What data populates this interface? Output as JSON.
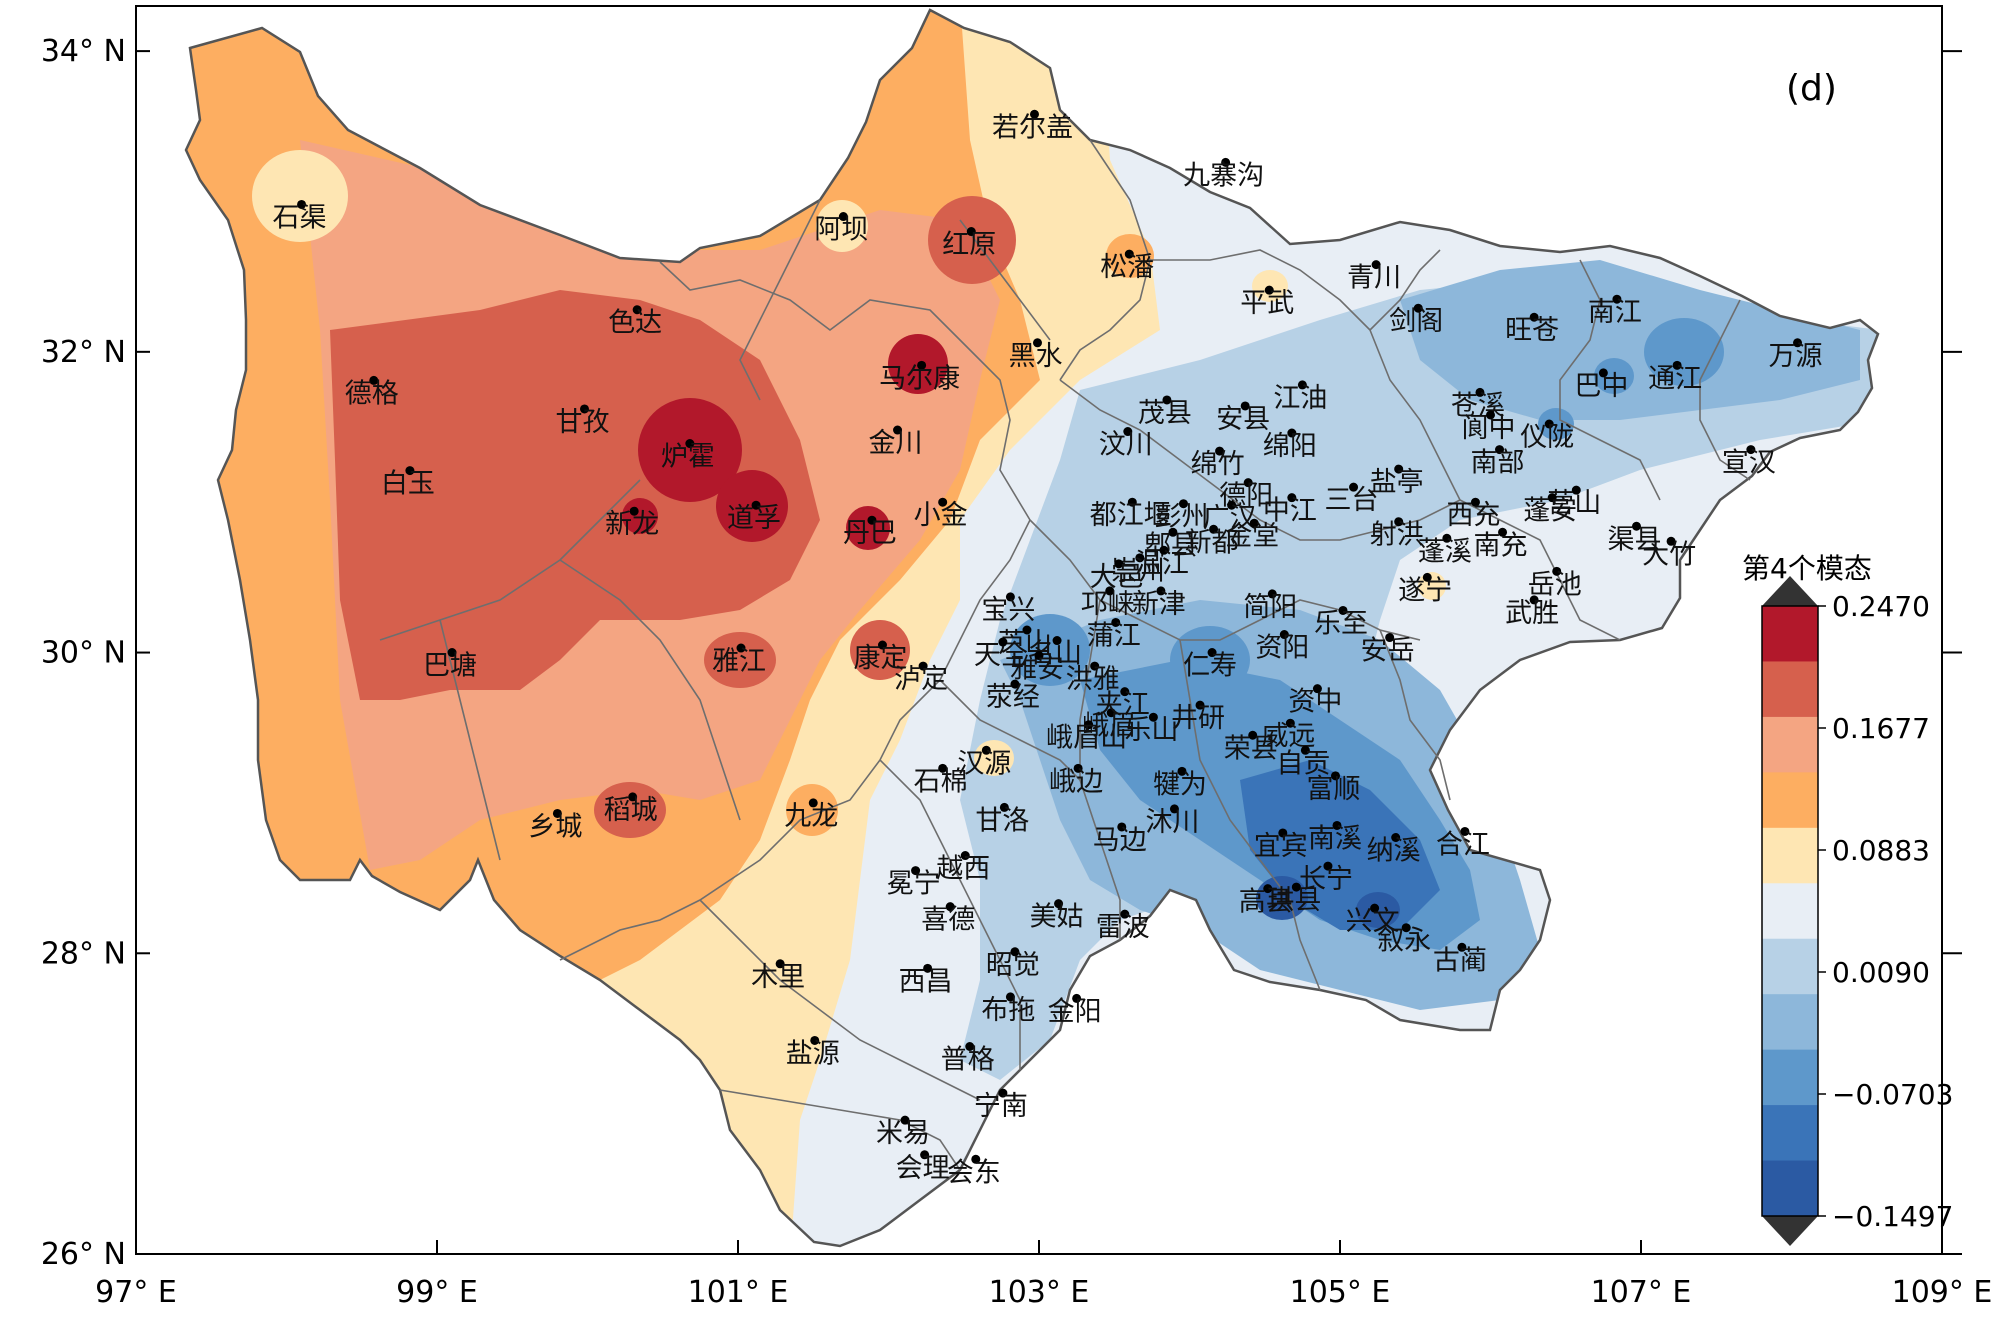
{
  "figure": {
    "panel_label": "(d)",
    "colorbar_title": "第4个模态"
  },
  "axes": {
    "x_ticks": [
      "97° E",
      "99° E",
      "101° E",
      "103° E",
      "105° E",
      "107° E",
      "109° E"
    ],
    "y_ticks": [
      "34° N",
      "32° N",
      "30° N",
      "28° N",
      "26° N"
    ],
    "lon_range": [
      97,
      109
    ],
    "lat_range": [
      26,
      34.3
    ]
  },
  "colorbar": {
    "tick_labels": [
      "0.2470",
      "0.1677",
      "0.0883",
      "0.0090",
      "−0.0703",
      "−0.1497"
    ],
    "colors": [
      "#b2182b",
      "#d6604d",
      "#f4a582",
      "#fdae61",
      "#fee6b3",
      "#e8eef5",
      "#b7d1e6",
      "#8db7da",
      "#5e98cb",
      "#3a74b8",
      "#2b5aa3"
    ]
  },
  "stations": [
    {
      "name": "石渠",
      "lon": 98.1,
      "lat": 32.98
    },
    {
      "name": "阿坝",
      "lon": 101.7,
      "lat": 32.9
    },
    {
      "name": "红原",
      "lon": 102.55,
      "lat": 32.8
    },
    {
      "name": "若尔盖",
      "lon": 102.97,
      "lat": 33.58
    },
    {
      "name": "九寨沟",
      "lon": 104.24,
      "lat": 33.26
    },
    {
      "name": "松潘",
      "lon": 103.6,
      "lat": 32.65
    },
    {
      "name": "色达",
      "lon": 100.33,
      "lat": 32.28
    },
    {
      "name": "德格",
      "lon": 98.58,
      "lat": 31.81
    },
    {
      "name": "甘孜",
      "lon": 99.98,
      "lat": 31.62
    },
    {
      "name": "炉霍",
      "lon": 100.68,
      "lat": 31.39
    },
    {
      "name": "白玉",
      "lon": 98.82,
      "lat": 31.21
    },
    {
      "name": "新龙",
      "lon": 100.31,
      "lat": 30.94
    },
    {
      "name": "道孚",
      "lon": 101.12,
      "lat": 30.98
    },
    {
      "name": "马尔康",
      "lon": 102.22,
      "lat": 31.91
    },
    {
      "name": "金川",
      "lon": 102.06,
      "lat": 31.48
    },
    {
      "name": "小金",
      "lon": 102.36,
      "lat": 31.0
    },
    {
      "name": "丹巴",
      "lon": 101.89,
      "lat": 30.88
    },
    {
      "name": "黑水",
      "lon": 102.99,
      "lat": 32.06
    },
    {
      "name": "平武",
      "lon": 104.53,
      "lat": 32.41
    },
    {
      "name": "青川",
      "lon": 105.24,
      "lat": 32.58
    },
    {
      "name": "剑阁",
      "lon": 105.52,
      "lat": 32.29
    },
    {
      "name": "旺苍",
      "lon": 106.29,
      "lat": 32.23
    },
    {
      "name": "南江",
      "lon": 106.84,
      "lat": 32.35
    },
    {
      "name": "巴中",
      "lon": 106.75,
      "lat": 31.86
    },
    {
      "name": "通江",
      "lon": 107.24,
      "lat": 31.91
    },
    {
      "name": "万源",
      "lon": 108.04,
      "lat": 32.06
    },
    {
      "name": "茂县",
      "lon": 103.85,
      "lat": 31.68
    },
    {
      "name": "安县",
      "lon": 104.37,
      "lat": 31.64
    },
    {
      "name": "江油",
      "lon": 104.75,
      "lat": 31.78
    },
    {
      "name": "苍溪",
      "lon": 105.93,
      "lat": 31.73
    },
    {
      "name": "阆中",
      "lon": 106.0,
      "lat": 31.58
    },
    {
      "name": "仪陇",
      "lon": 106.39,
      "lat": 31.52
    },
    {
      "name": "汶川",
      "lon": 103.59,
      "lat": 31.47
    },
    {
      "name": "绵竹",
      "lon": 104.2,
      "lat": 31.34
    },
    {
      "name": "绵阳",
      "lon": 104.68,
      "lat": 31.46
    },
    {
      "name": "德阳",
      "lon": 104.39,
      "lat": 31.13
    },
    {
      "name": "盐亭",
      "lon": 105.39,
      "lat": 31.22
    },
    {
      "name": "宣汉",
      "lon": 107.73,
      "lat": 31.35
    },
    {
      "name": "都江堰",
      "lon": 103.62,
      "lat": 31.0
    },
    {
      "name": "彭州",
      "lon": 103.96,
      "lat": 30.99
    },
    {
      "name": "广汉",
      "lon": 104.28,
      "lat": 30.98
    },
    {
      "name": "中江",
      "lon": 104.68,
      "lat": 31.03
    },
    {
      "name": "三台",
      "lon": 105.09,
      "lat": 31.1
    },
    {
      "name": "南部",
      "lon": 106.06,
      "lat": 31.35
    },
    {
      "name": "营山",
      "lon": 106.57,
      "lat": 31.08
    },
    {
      "name": "西充",
      "lon": 105.9,
      "lat": 31.0
    },
    {
      "name": "南充",
      "lon": 106.08,
      "lat": 30.8
    },
    {
      "name": "渠县",
      "lon": 106.97,
      "lat": 30.84
    },
    {
      "name": "崇州",
      "lon": 103.67,
      "lat": 30.63
    },
    {
      "name": "郫县",
      "lon": 103.89,
      "lat": 30.8
    },
    {
      "name": "新都",
      "lon": 104.16,
      "lat": 30.82
    },
    {
      "name": "金堂",
      "lon": 104.43,
      "lat": 30.86
    },
    {
      "name": "射洪",
      "lon": 105.39,
      "lat": 30.87
    },
    {
      "name": "蓬溪",
      "lon": 105.71,
      "lat": 30.76
    },
    {
      "name": "蓬安",
      "lon": 106.41,
      "lat": 31.03
    },
    {
      "name": "大竹",
      "lon": 107.2,
      "lat": 30.74
    },
    {
      "name": "宝兴",
      "lon": 102.81,
      "lat": 30.37
    },
    {
      "name": "芦山",
      "lon": 102.92,
      "lat": 30.15
    },
    {
      "name": "大邑",
      "lon": 103.53,
      "lat": 30.59
    },
    {
      "name": "温江",
      "lon": 103.83,
      "lat": 30.68
    },
    {
      "name": "乐至",
      "lon": 105.02,
      "lat": 30.28
    },
    {
      "name": "遂宁",
      "lon": 105.58,
      "lat": 30.5
    },
    {
      "name": "武胜",
      "lon": 106.29,
      "lat": 30.35
    },
    {
      "name": "岳池",
      "lon": 106.44,
      "lat": 30.54
    },
    {
      "name": "名山",
      "lon": 103.12,
      "lat": 30.08
    },
    {
      "name": "邛崃",
      "lon": 103.47,
      "lat": 30.41
    },
    {
      "name": "新津",
      "lon": 103.81,
      "lat": 30.41
    },
    {
      "name": "简阳",
      "lon": 104.55,
      "lat": 30.39
    },
    {
      "name": "资阳",
      "lon": 104.63,
      "lat": 30.12
    },
    {
      "name": "康定",
      "lon": 101.96,
      "lat": 30.05
    },
    {
      "name": "雅江",
      "lon": 101.02,
      "lat": 30.03
    },
    {
      "name": "巴塘",
      "lon": 99.1,
      "lat": 30.0
    },
    {
      "name": "天全",
      "lon": 102.76,
      "lat": 30.07
    },
    {
      "name": "雅安",
      "lon": 103.0,
      "lat": 29.98
    },
    {
      "name": "洪雅",
      "lon": 103.37,
      "lat": 29.91
    },
    {
      "name": "仁寿",
      "lon": 104.15,
      "lat": 30.0
    },
    {
      "name": "资中",
      "lon": 104.85,
      "lat": 29.76
    },
    {
      "name": "安岳",
      "lon": 105.33,
      "lat": 30.1
    },
    {
      "name": "泸定",
      "lon": 102.23,
      "lat": 29.91
    },
    {
      "name": "蒲江",
      "lon": 103.51,
      "lat": 30.2
    },
    {
      "name": "荥经",
      "lon": 102.84,
      "lat": 29.79
    },
    {
      "name": "峨眉",
      "lon": 103.48,
      "lat": 29.6
    },
    {
      "name": "夹江",
      "lon": 103.57,
      "lat": 29.74
    },
    {
      "name": "井研",
      "lon": 104.07,
      "lat": 29.65
    },
    {
      "name": "威远",
      "lon": 104.67,
      "lat": 29.53
    },
    {
      "name": "荣县",
      "lon": 104.42,
      "lat": 29.45
    },
    {
      "name": "汉源",
      "lon": 102.65,
      "lat": 29.35
    },
    {
      "name": "峨眉山",
      "lon": 103.33,
      "lat": 29.52
    },
    {
      "name": "自贡",
      "lon": 104.77,
      "lat": 29.35
    },
    {
      "name": "石棉",
      "lon": 102.36,
      "lat": 29.23
    },
    {
      "name": "犍为",
      "lon": 103.95,
      "lat": 29.21
    },
    {
      "name": "富顺",
      "lon": 104.97,
      "lat": 29.18
    },
    {
      "name": "九龙",
      "lon": 101.5,
      "lat": 29.0
    },
    {
      "name": "稻城",
      "lon": 100.3,
      "lat": 29.04
    },
    {
      "name": "乡城",
      "lon": 99.8,
      "lat": 28.93
    },
    {
      "name": "甘洛",
      "lon": 102.77,
      "lat": 28.97
    },
    {
      "name": "宜宾",
      "lon": 104.62,
      "lat": 28.8
    },
    {
      "name": "南溪",
      "lon": 104.98,
      "lat": 28.85
    },
    {
      "name": "合江",
      "lon": 105.83,
      "lat": 28.81
    },
    {
      "name": "峨边",
      "lon": 103.26,
      "lat": 29.23
    },
    {
      "name": "乐山",
      "lon": 103.76,
      "lat": 29.57
    },
    {
      "name": "越西",
      "lon": 102.51,
      "lat": 28.65
    },
    {
      "name": "马边",
      "lon": 103.55,
      "lat": 28.84
    },
    {
      "name": "沐川",
      "lon": 103.9,
      "lat": 28.96
    },
    {
      "name": "纳溪",
      "lon": 105.37,
      "lat": 28.77
    },
    {
      "name": "冕宁",
      "lon": 102.18,
      "lat": 28.55
    },
    {
      "name": "高县",
      "lon": 104.52,
      "lat": 28.43
    },
    {
      "name": "长宁",
      "lon": 104.92,
      "lat": 28.58
    },
    {
      "name": "兴文",
      "lon": 105.23,
      "lat": 28.3
    },
    {
      "name": "美姑",
      "lon": 103.13,
      "lat": 28.33
    },
    {
      "name": "雷波",
      "lon": 103.57,
      "lat": 28.26
    },
    {
      "name": "喜德",
      "lon": 102.41,
      "lat": 28.31
    },
    {
      "name": "珙县",
      "lon": 104.71,
      "lat": 28.44
    },
    {
      "name": "叙永",
      "lon": 105.44,
      "lat": 28.17
    },
    {
      "name": "古蔺",
      "lon": 105.81,
      "lat": 28.04
    },
    {
      "name": "昭觉",
      "lon": 102.84,
      "lat": 28.01
    },
    {
      "name": "木里",
      "lon": 101.28,
      "lat": 27.93
    },
    {
      "name": "西昌",
      "lon": 102.26,
      "lat": 27.9
    },
    {
      "name": "布拖",
      "lon": 102.81,
      "lat": 27.71
    },
    {
      "name": "金阳",
      "lon": 103.25,
      "lat": 27.7
    },
    {
      "name": "盐源",
      "lon": 101.51,
      "lat": 27.42
    },
    {
      "name": "普格",
      "lon": 102.54,
      "lat": 27.38
    },
    {
      "name": "宁南",
      "lon": 102.76,
      "lat": 27.07
    },
    {
      "name": "米易",
      "lon": 102.11,
      "lat": 26.89
    },
    {
      "name": "会东",
      "lon": 102.58,
      "lat": 26.63
    },
    {
      "name": "会理",
      "lon": 102.24,
      "lat": 26.66
    }
  ]
}
